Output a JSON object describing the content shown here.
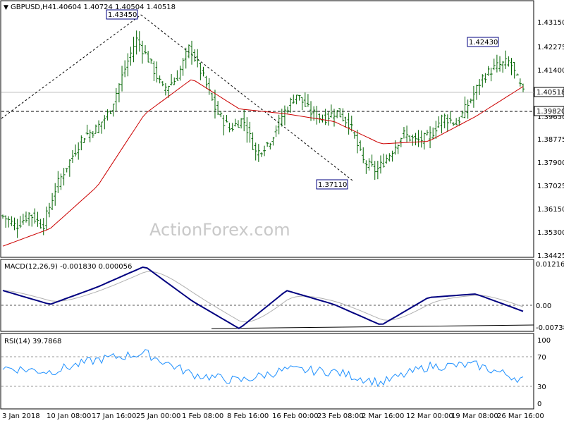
{
  "header": {
    "symbol": "GBPUSD,H4",
    "ohlc": "1.40604 1.40724 1.40504 1.40518"
  },
  "watermark": "ActionForex.com",
  "colors": {
    "bar": "#006400",
    "ma": "#cc0000",
    "macd": "#000080",
    "signal": "#b0b0b0",
    "rsi": "#1e90ff"
  },
  "price_axis": {
    "ticks": [
      "1.43150",
      "1.42275",
      "1.41400",
      "1.40518",
      "1.39820",
      "1.38775",
      "1.37900",
      "1.37025",
      "1.36150",
      "1.35300",
      "1.34425"
    ],
    "hidden_tick": "1.39650",
    "current_price": "1.40518",
    "support_level": "1.39820"
  },
  "annotations": {
    "high1": "1.43450",
    "low1": "1.37110",
    "high2": "1.42430"
  },
  "macd": {
    "title": "MACD(12,26,9) -0.001830 0.000056",
    "ticks": [
      "0.012164",
      "0.00",
      "-0.007384"
    ]
  },
  "rsi": {
    "title": "RSI(14) 39.7868",
    "ticks": [
      "100",
      "70",
      "30",
      "0"
    ]
  },
  "time_axis": [
    "3 Jan 2018",
    "10 Jan 08:00",
    "17 Jan 16:00",
    "25 Jan 00:00",
    "1 Feb 08:00",
    "8 Feb 16:00",
    "16 Feb 00:00",
    "23 Feb 08:00",
    "2 Mar 16:00",
    "12 Mar 00:00",
    "19 Mar 08:00",
    "26 Mar 16:00"
  ],
  "chart_data": {
    "type": "line",
    "title": "GBPUSD,H4",
    "x_labels": [
      "3 Jan 2018",
      "10 Jan 08:00",
      "17 Jan 16:00",
      "25 Jan 00:00",
      "1 Feb 08:00",
      "8 Feb 16:00",
      "16 Feb 00:00",
      "23 Feb 08:00",
      "2 Mar 16:00",
      "12 Mar 00:00",
      "19 Mar 08:00",
      "26 Mar 16:00"
    ],
    "ylim": [
      1.3415,
      1.437
    ],
    "close_series": [
      {
        "x": "3 Jan 2018",
        "y": 1.356
      },
      {
        "x": "5 Jan 2018",
        "y": 1.352
      },
      {
        "x": "8 Jan 2018",
        "y": 1.357
      },
      {
        "x": "10 Jan 08:00",
        "y": 1.352
      },
      {
        "x": "12 Jan 2018",
        "y": 1.368
      },
      {
        "x": "15 Jan 2018",
        "y": 1.378
      },
      {
        "x": "17 Jan 16:00",
        "y": 1.388
      },
      {
        "x": "19 Jan 2018",
        "y": 1.391
      },
      {
        "x": "22 Jan 2018",
        "y": 1.398
      },
      {
        "x": "23 Jan 2018",
        "y": 1.413
      },
      {
        "x": "25 Jan 00:00",
        "y": 1.427
      },
      {
        "x": "26 Jan 2018",
        "y": 1.418
      },
      {
        "x": "29 Jan 2018",
        "y": 1.407
      },
      {
        "x": "30 Jan 2018",
        "y": 1.411
      },
      {
        "x": "1 Feb 08:00",
        "y": 1.424
      },
      {
        "x": "2 Feb 2018",
        "y": 1.412
      },
      {
        "x": "5 Feb 2018",
        "y": 1.398
      },
      {
        "x": "6 Feb 2018",
        "y": 1.391
      },
      {
        "x": "8 Feb 16:00",
        "y": 1.395
      },
      {
        "x": "9 Feb 2018",
        "y": 1.381
      },
      {
        "x": "12 Feb 2018",
        "y": 1.386
      },
      {
        "x": "14 Feb 2018",
        "y": 1.397
      },
      {
        "x": "16 Feb 00:00",
        "y": 1.405
      },
      {
        "x": "19 Feb 2018",
        "y": 1.398
      },
      {
        "x": "21 Feb 2018",
        "y": 1.395
      },
      {
        "x": "23 Feb 08:00",
        "y": 1.398
      },
      {
        "x": "26 Feb 2018",
        "y": 1.393
      },
      {
        "x": "28 Feb 2018",
        "y": 1.378
      },
      {
        "x": "1 Mar 2018",
        "y": 1.374
      },
      {
        "x": "2 Mar 16:00",
        "y": 1.381
      },
      {
        "x": "6 Mar 2018",
        "y": 1.389
      },
      {
        "x": "8 Mar 2018",
        "y": 1.386
      },
      {
        "x": "12 Mar 00:00",
        "y": 1.388
      },
      {
        "x": "14 Mar 2018",
        "y": 1.396
      },
      {
        "x": "16 Mar 2018",
        "y": 1.393
      },
      {
        "x": "19 Mar 08:00",
        "y": 1.402
      },
      {
        "x": "21 Mar 2018",
        "y": 1.412
      },
      {
        "x": "23 Mar 2018",
        "y": 1.416
      },
      {
        "x": "26 Mar 16:00",
        "y": 1.418
      },
      {
        "x": "27 Mar 2018",
        "y": 1.40518
      }
    ],
    "moving_average": [
      {
        "x": "3 Jan 2018",
        "y": 1.344
      },
      {
        "x": "10 Jan 08:00",
        "y": 1.351
      },
      {
        "x": "17 Jan 16:00",
        "y": 1.368
      },
      {
        "x": "25 Jan 00:00",
        "y": 1.397
      },
      {
        "x": "1 Feb 08:00",
        "y": 1.411
      },
      {
        "x": "8 Feb 16:00",
        "y": 1.399
      },
      {
        "x": "16 Feb 00:00",
        "y": 1.397
      },
      {
        "x": "23 Feb 08:00",
        "y": 1.394
      },
      {
        "x": "2 Mar 16:00",
        "y": 1.385
      },
      {
        "x": "12 Mar 00:00",
        "y": 1.386
      },
      {
        "x": "19 Mar 08:00",
        "y": 1.396
      },
      {
        "x": "26 Mar 16:00",
        "y": 1.408
      }
    ],
    "macd_series": [
      {
        "x": "3 Jan 2018",
        "y": 0.004
      },
      {
        "x": "10 Jan 08:00",
        "y": 0.0
      },
      {
        "x": "17 Jan 16:00",
        "y": 0.005
      },
      {
        "x": "25 Jan 00:00",
        "y": 0.011
      },
      {
        "x": "1 Feb 08:00",
        "y": 0.001
      },
      {
        "x": "8 Feb 16:00",
        "y": -0.007
      },
      {
        "x": "16 Feb 00:00",
        "y": 0.004
      },
      {
        "x": "23 Feb 08:00",
        "y": 0.0
      },
      {
        "x": "2 Mar 16:00",
        "y": -0.006
      },
      {
        "x": "12 Mar 00:00",
        "y": 0.002
      },
      {
        "x": "19 Mar 08:00",
        "y": 0.003
      },
      {
        "x": "26 Mar 16:00",
        "y": -0.002
      }
    ],
    "rsi_series": [
      {
        "x": "3 Jan 2018",
        "y": 58
      },
      {
        "x": "10 Jan 08:00",
        "y": 52
      },
      {
        "x": "17 Jan 16:00",
        "y": 70
      },
      {
        "x": "25 Jan 00:00",
        "y": 80
      },
      {
        "x": "1 Feb 08:00",
        "y": 48
      },
      {
        "x": "8 Feb 16:00",
        "y": 38
      },
      {
        "x": "16 Feb 00:00",
        "y": 55
      },
      {
        "x": "23 Feb 08:00",
        "y": 52
      },
      {
        "x": "2 Mar 16:00",
        "y": 35
      },
      {
        "x": "12 Mar 00:00",
        "y": 60
      },
      {
        "x": "19 Mar 08:00",
        "y": 62
      },
      {
        "x": "26 Mar 16:00",
        "y": 39.7868
      }
    ]
  }
}
